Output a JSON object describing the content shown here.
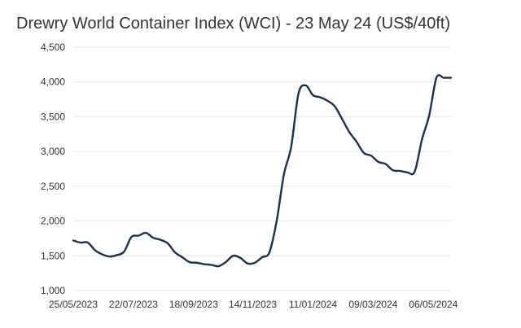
{
  "chart_data": {
    "type": "line",
    "title": "Drewry World Container Index (WCI) - 23 May 24 (US$/40ft)",
    "xlabel": "",
    "ylabel": "",
    "ylim": [
      1000,
      4500
    ],
    "y_ticks": [
      1000,
      1500,
      2000,
      2500,
      3000,
      3500,
      4000,
      4500
    ],
    "y_tick_labels": [
      "1,000",
      "1,500",
      "2,000",
      "2,500",
      "3,000",
      "3,500",
      "4,000",
      "4,500"
    ],
    "x_tick_labels": [
      "25/05/2023",
      "22/07/2023",
      "18/09/2023",
      "14/11/2023",
      "11/01/2024",
      "09/03/2024",
      "06/05/2024"
    ],
    "grid": true,
    "legend": "none",
    "line_color": "#1b2f4e",
    "series": [
      {
        "x": [
          "2023-05-25",
          "2023-06-01",
          "2023-06-08",
          "2023-06-15",
          "2023-06-22",
          "2023-06-29",
          "2023-07-06",
          "2023-07-13",
          "2023-07-20",
          "2023-07-27",
          "2023-08-03",
          "2023-08-10",
          "2023-08-17",
          "2023-08-24",
          "2023-08-31",
          "2023-09-07",
          "2023-09-14",
          "2023-09-21",
          "2023-09-28",
          "2023-10-05",
          "2023-10-12",
          "2023-10-19",
          "2023-10-26",
          "2023-11-02",
          "2023-11-09",
          "2023-11-16",
          "2023-11-23",
          "2023-11-30",
          "2023-12-07",
          "2023-12-14",
          "2023-12-21",
          "2023-12-28",
          "2024-01-04",
          "2024-01-11",
          "2024-01-18",
          "2024-01-25",
          "2024-02-01",
          "2024-02-08",
          "2024-02-15",
          "2024-02-22",
          "2024-02-29",
          "2024-03-07",
          "2024-03-14",
          "2024-03-21",
          "2024-03-28",
          "2024-04-04",
          "2024-04-11",
          "2024-04-18",
          "2024-04-25",
          "2024-05-02",
          "2024-05-09",
          "2024-05-16",
          "2024-05-23"
        ],
        "values": [
          1720,
          1690,
          1690,
          1580,
          1520,
          1490,
          1510,
          1560,
          1770,
          1790,
          1830,
          1760,
          1730,
          1680,
          1550,
          1480,
          1410,
          1400,
          1380,
          1370,
          1350,
          1410,
          1500,
          1470,
          1390,
          1400,
          1480,
          1550,
          2000,
          2670,
          3070,
          3830,
          3950,
          3810,
          3780,
          3730,
          3650,
          3470,
          3280,
          3140,
          2980,
          2940,
          2850,
          2820,
          2730,
          2720,
          2700,
          2710,
          3170,
          3520,
          4060,
          4060,
          4060
        ]
      }
    ]
  }
}
